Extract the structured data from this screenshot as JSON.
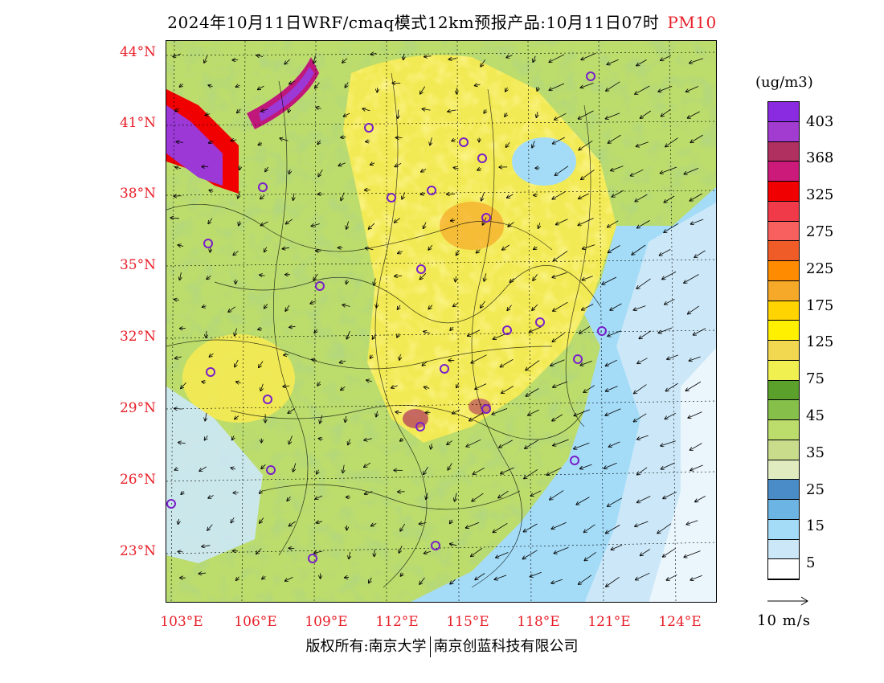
{
  "header": {
    "title": "2024年10月11日WRF/cmaq模式12km预报产品:10月11日07时",
    "species": "PM10"
  },
  "map": {
    "lat_labels": [
      "44°N",
      "41°N",
      "38°N",
      "35°N",
      "32°N",
      "29°N",
      "26°N",
      "23°N"
    ],
    "lon_labels": [
      "103°E",
      "106°E",
      "109°E",
      "112°E",
      "115°E",
      "118°E",
      "121°E",
      "124°E"
    ],
    "colors": {
      "background": "#9fd8f2",
      "ocean": "#cfeaf8",
      "purple": "#9b38d6",
      "magenta": "#c0187a",
      "yellow": "#fcec50",
      "green": "#6aa83c",
      "city_marker": "#7a1fc9"
    },
    "wind_field": "vector-arrows",
    "markers": "city-circles"
  },
  "colorbar": {
    "unit": "(ug/m3)",
    "labels": [
      "403",
      "368",
      "325",
      "275",
      "225",
      "175",
      "125",
      "75",
      "45",
      "35",
      "25",
      "15",
      "5"
    ],
    "colors": [
      "#8a2be2",
      "#a23bd0",
      "#b03060",
      "#cc1a7a",
      "#f00000",
      "#f03a4a",
      "#f86060",
      "#f05c28",
      "#ff8c00",
      "#f6a828",
      "#ffd400",
      "#fff000",
      "#f2d850",
      "#f0f050",
      "#5aa02a",
      "#86c04a",
      "#bcdc6c",
      "#c8dc8c",
      "#e0ecc0",
      "#4a8cc8",
      "#6cb4e4",
      "#a4dcf8",
      "#cce8f8",
      "#ffffff"
    ]
  },
  "wind_reference": {
    "label": "10 m/s"
  },
  "footer": {
    "copyright_left": "版权所有:南京大学",
    "copyright_right": "南京创蓝科技有限公司"
  }
}
